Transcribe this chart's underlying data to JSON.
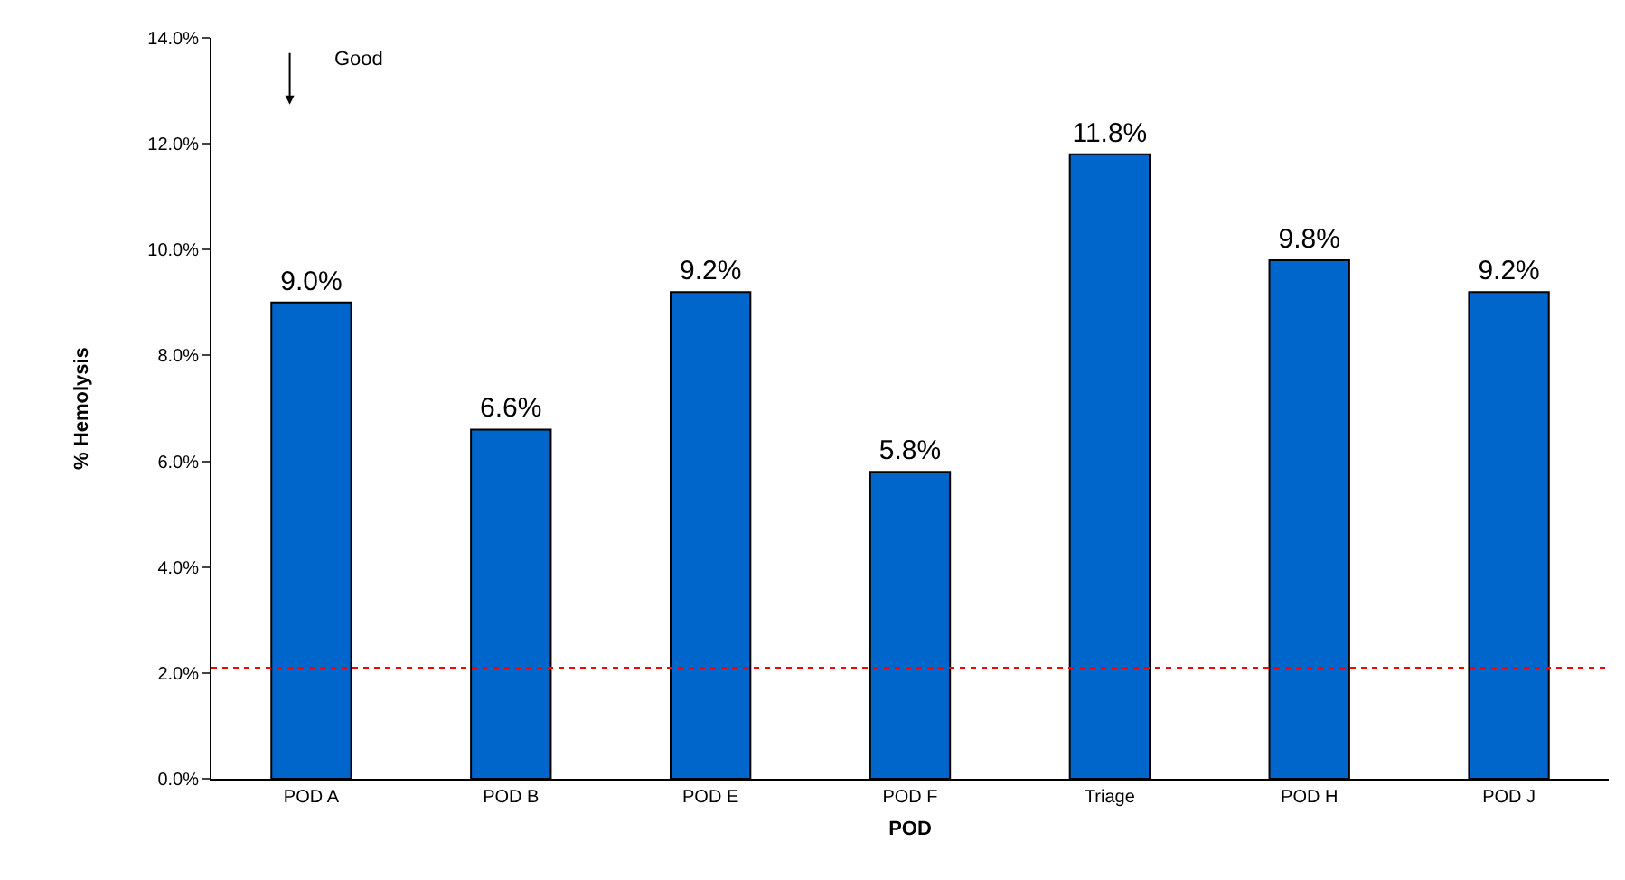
{
  "chart_data": {
    "type": "bar",
    "xlabel": "POD",
    "ylabel": "% Hemolysis",
    "categories": [
      "POD A",
      "POD B",
      "POD E",
      "POD F",
      "Triage",
      "POD H",
      "POD J"
    ],
    "values": [
      9.0,
      6.6,
      9.2,
      5.8,
      11.8,
      9.8,
      9.2
    ],
    "value_labels": [
      "9.0%",
      "6.6%",
      "9.2%",
      "5.8%",
      "11.8%",
      "9.8%",
      "9.2%"
    ],
    "color": "#0066cc",
    "ylim": [
      0,
      14
    ],
    "yticks": [
      {
        "value": 0,
        "label": "0.0%"
      },
      {
        "value": 2,
        "label": "2.0%"
      },
      {
        "value": 4,
        "label": "4.0%"
      },
      {
        "value": 6,
        "label": "6.0%"
      },
      {
        "value": 8,
        "label": "8.0%"
      },
      {
        "value": 10,
        "label": "10.0%"
      },
      {
        "value": 12,
        "label": "12.0%"
      },
      {
        "value": 14,
        "label": "14.0%"
      }
    ],
    "ref_lines": [
      {
        "axis": "y",
        "value": 2.1,
        "label": null,
        "color": "#ff0000",
        "line_style": "dotted"
      }
    ],
    "annotations": [
      "Good"
    ]
  }
}
